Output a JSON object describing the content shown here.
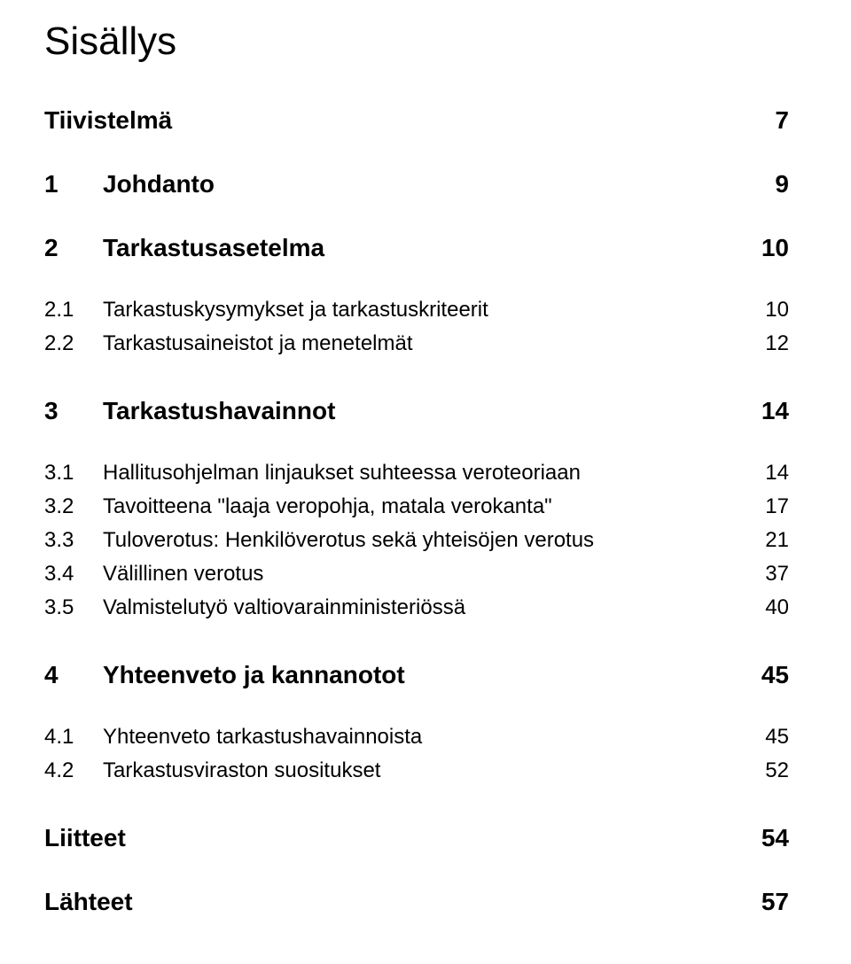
{
  "title": "Sisällys",
  "entries": [
    {
      "kind": "plain",
      "level": 1,
      "label": "Tiivistelmä",
      "page": "7"
    },
    {
      "kind": "numbered",
      "level": 1,
      "num": "1",
      "label": "Johdanto",
      "page": "9"
    },
    {
      "kind": "numbered",
      "level": 1,
      "num": "2",
      "label": "Tarkastusasetelma",
      "page": "10"
    },
    {
      "kind": "numbered",
      "level": 2,
      "num": "2.1",
      "label": "Tarkastuskysymykset ja tarkastuskriteerit",
      "page": "10"
    },
    {
      "kind": "numbered",
      "level": 2,
      "num": "2.2",
      "label": "Tarkastusaineistot ja menetelmät",
      "page": "12"
    },
    {
      "kind": "numbered",
      "level": 1,
      "num": "3",
      "label": "Tarkastushavainnot",
      "page": "14"
    },
    {
      "kind": "numbered",
      "level": 2,
      "num": "3.1",
      "label": "Hallitusohjelman linjaukset suhteessa veroteoriaan",
      "page": "14"
    },
    {
      "kind": "numbered",
      "level": 2,
      "num": "3.2",
      "label": "Tavoitteena \"laaja veropohja, matala verokanta\"",
      "page": "17"
    },
    {
      "kind": "numbered",
      "level": 2,
      "num": "3.3",
      "label": "Tuloverotus: Henkilöverotus sekä yhteisöjen verotus",
      "page": "21"
    },
    {
      "kind": "numbered",
      "level": 2,
      "num": "3.4",
      "label": "Välillinen verotus",
      "page": "37"
    },
    {
      "kind": "numbered",
      "level": 2,
      "num": "3.5",
      "label": "Valmistelutyö valtiovarainministeriössä",
      "page": "40"
    },
    {
      "kind": "numbered",
      "level": 1,
      "num": "4",
      "label": "Yhteenveto ja kannanotot",
      "page": "45"
    },
    {
      "kind": "numbered",
      "level": 2,
      "num": "4.1",
      "label": "Yhteenveto tarkastushavainnoista",
      "page": "45"
    },
    {
      "kind": "numbered",
      "level": 2,
      "num": "4.2",
      "label": "Tarkastusviraston suositukset",
      "page": "52"
    },
    {
      "kind": "plain",
      "level": 1,
      "label": "Liitteet",
      "page": "54"
    },
    {
      "kind": "plain",
      "level": 1,
      "label": "Lähteet",
      "page": "57"
    }
  ],
  "style": {
    "background_color": "#ffffff",
    "text_color": "#000000",
    "title_fontsize": 44,
    "lvl1_fontsize": 28,
    "lvl2_fontsize": 24
  }
}
